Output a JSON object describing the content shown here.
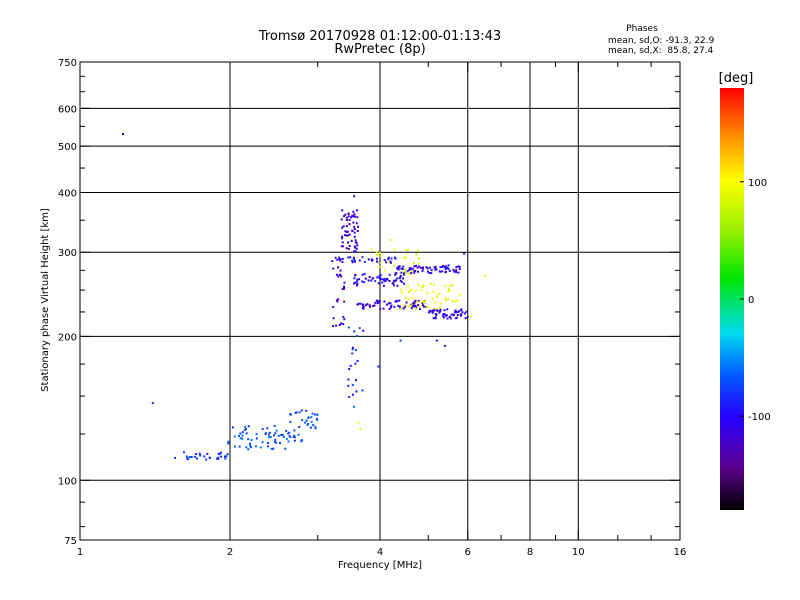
{
  "chart_data": {
    "type": "scatter",
    "title": "Tromsø 20170928 01:12:00-01:13:43",
    "subtitle": "RwPretec (8p)",
    "stats": {
      "heading": "Phases",
      "o_line": "mean, sd,O: -91.3, 22.9",
      "x_line": "mean, sd,X:  85.8, 27.4"
    },
    "xlabel": "Frequency [MHz]",
    "ylabel": "Stationary phase Virtual Height [km]",
    "x_scale": "log",
    "y_scale": "log",
    "xlim": [
      1,
      16
    ],
    "ylim": [
      75,
      750
    ],
    "x_ticks": [
      1,
      2,
      4,
      6,
      8,
      10,
      16
    ],
    "x_tick_labels": [
      "1",
      "2",
      "4",
      "6",
      "8",
      "10",
      "16"
    ],
    "x_grid": [
      2,
      4,
      6,
      8,
      10
    ],
    "x_minor_ticks": [
      3,
      5,
      7,
      9,
      12,
      14
    ],
    "y_ticks": [
      75,
      100,
      200,
      300,
      400,
      500,
      600,
      750
    ],
    "y_tick_labels": [
      "75",
      "100",
      "200",
      "300",
      "400",
      "500",
      "600",
      "750"
    ],
    "y_grid": [
      100,
      200,
      300,
      400,
      500,
      600
    ],
    "y_minor_ticks": [
      80,
      90,
      125,
      150,
      175,
      225,
      250,
      275,
      350,
      450,
      550,
      650,
      700
    ],
    "grid": true,
    "colorbar": {
      "label": "[deg]",
      "min": -180,
      "max": 180,
      "ticks": [
        100,
        0,
        -100
      ],
      "tick_labels": [
        "100",
        "0",
        "-100"
      ],
      "colormap": "rainbow"
    },
    "clusters": [
      {
        "points": [
          [
            1.22,
            530,
            -115
          ],
          [
            1.4,
            145,
            -85
          ]
        ]
      },
      {
        "n": 28,
        "f_range": [
          1.55,
          1.98
        ],
        "h_range": [
          110,
          115
        ],
        "phase": -80,
        "spread": 10
      },
      {
        "n": 55,
        "f_range": [
          1.98,
          2.6
        ],
        "h_range": [
          116,
          130
        ],
        "phase": -70,
        "spread": 15
      },
      {
        "n": 42,
        "f_range": [
          2.6,
          3.0
        ],
        "h_range": [
          120,
          142
        ],
        "phase": -70,
        "spread": 18
      },
      {
        "n": 60,
        "f_range": [
          3.35,
          3.62
        ],
        "h_range": [
          300,
          370
        ],
        "phase": -115,
        "spread": 15
      },
      {
        "n": 35,
        "f_range": [
          3.2,
          4.3
        ],
        "h_range": [
          285,
          293
        ],
        "phase": -100,
        "spread": 20
      },
      {
        "n": 70,
        "f_range": [
          4.3,
          5.9
        ],
        "h_range": [
          271,
          282
        ],
        "phase": -105,
        "spread": 15
      },
      {
        "n": 55,
        "f_range": [
          3.5,
          4.5
        ],
        "h_range": [
          255,
          270
        ],
        "phase": -100,
        "spread": 20
      },
      {
        "n": 65,
        "f_range": [
          3.6,
          5.0
        ],
        "h_range": [
          228,
          238
        ],
        "phase": -115,
        "spread": 15
      },
      {
        "n": 60,
        "f_range": [
          5.0,
          6.0
        ],
        "h_range": [
          218,
          228
        ],
        "phase": -105,
        "spread": 15
      },
      {
        "n": 55,
        "f_range": [
          4.4,
          5.8
        ],
        "h_range": [
          228,
          258
        ],
        "phase": 95,
        "spread": 15
      },
      {
        "n": 25,
        "f_range": [
          3.9,
          4.8
        ],
        "h_range": [
          270,
          305
        ],
        "phase": 85,
        "spread": 25
      },
      {
        "n": 28,
        "f_range": [
          3.2,
          3.4
        ],
        "h_range": [
          210,
          295
        ],
        "phase": -110,
        "spread": 20
      },
      {
        "n": 22,
        "f_range": [
          3.45,
          3.72
        ],
        "h_range": [
          140,
          210
        ],
        "phase": -85,
        "spread": 30
      },
      {
        "points": [
          [
            3.62,
            132,
            100
          ],
          [
            3.65,
            128,
            105
          ],
          [
            3.97,
            173,
            -85
          ],
          [
            4.4,
            196,
            -80
          ],
          [
            5.2,
            196,
            -110
          ],
          [
            5.4,
            191,
            -115
          ],
          [
            6.5,
            268,
            110
          ],
          [
            6.1,
            220,
            95
          ],
          [
            3.85,
            305,
            90
          ],
          [
            4.2,
            318,
            85
          ],
          [
            5.9,
            298,
            -90
          ],
          [
            3.55,
            393,
            -115
          ]
        ]
      }
    ]
  }
}
